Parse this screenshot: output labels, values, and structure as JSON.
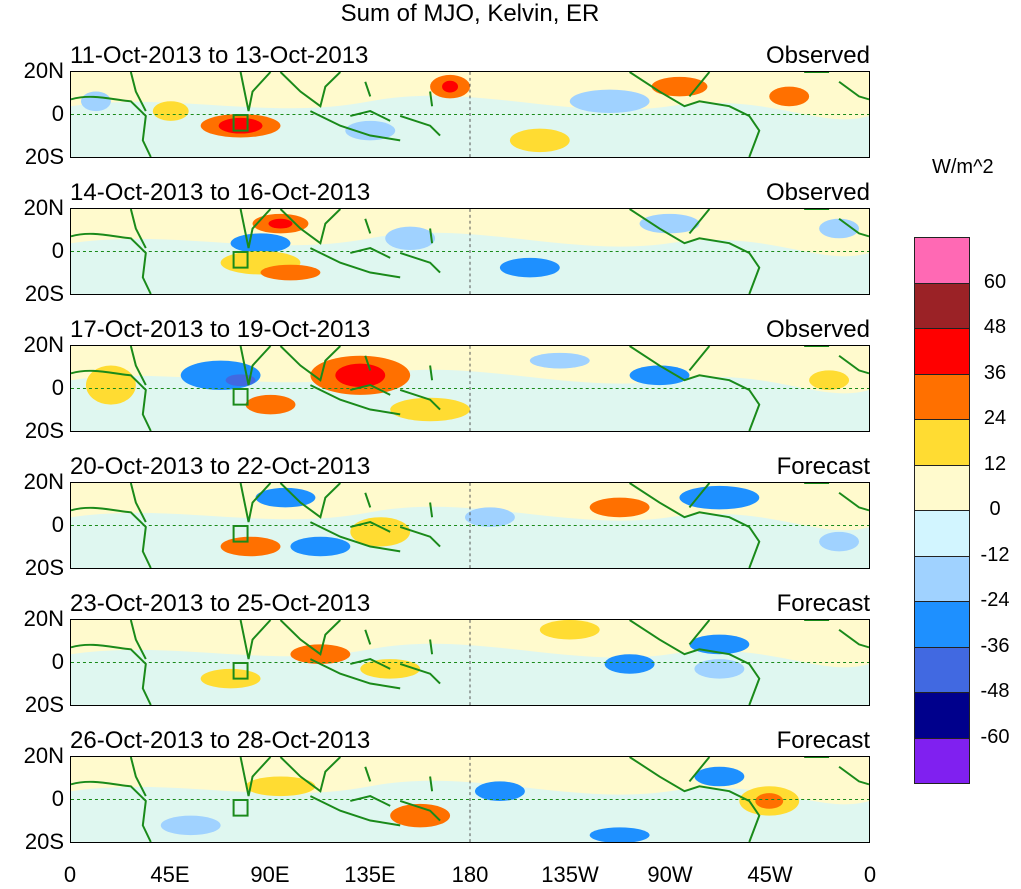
{
  "title": "Sum of MJO, Kelvin, ER",
  "panels": [
    {
      "dates": "11-Oct-2013 to 13-Oct-2013",
      "kind": "Observed"
    },
    {
      "dates": "14-Oct-2013 to 16-Oct-2013",
      "kind": "Observed"
    },
    {
      "dates": "17-Oct-2013 to 19-Oct-2013",
      "kind": "Observed"
    },
    {
      "dates": "20-Oct-2013 to 22-Oct-2013",
      "kind": "Forecast"
    },
    {
      "dates": "23-Oct-2013 to 25-Oct-2013",
      "kind": "Forecast"
    },
    {
      "dates": "26-Oct-2013 to 28-Oct-2013",
      "kind": "Forecast"
    }
  ],
  "y_ticks": [
    "20N",
    "0",
    "20S"
  ],
  "x_ticks": [
    "0",
    "45E",
    "90E",
    "135E",
    "180",
    "135W",
    "90W",
    "45W",
    "0"
  ],
  "colorbar": {
    "units": "W/m^2",
    "labels": [
      "60",
      "48",
      "36",
      "24",
      "12",
      "0",
      "-12",
      "-24",
      "-36",
      "-48",
      "-60"
    ],
    "colors": [
      "#ff69b4",
      "#9b2226",
      "#ff0000",
      "#ff7000",
      "#ffdc32",
      "#fffacd",
      "#d2f5ff",
      "#a0d2ff",
      "#1e90ff",
      "#4169e1",
      "#00008c",
      "#8020f0"
    ]
  },
  "coast_color": "#1a8a1a"
}
